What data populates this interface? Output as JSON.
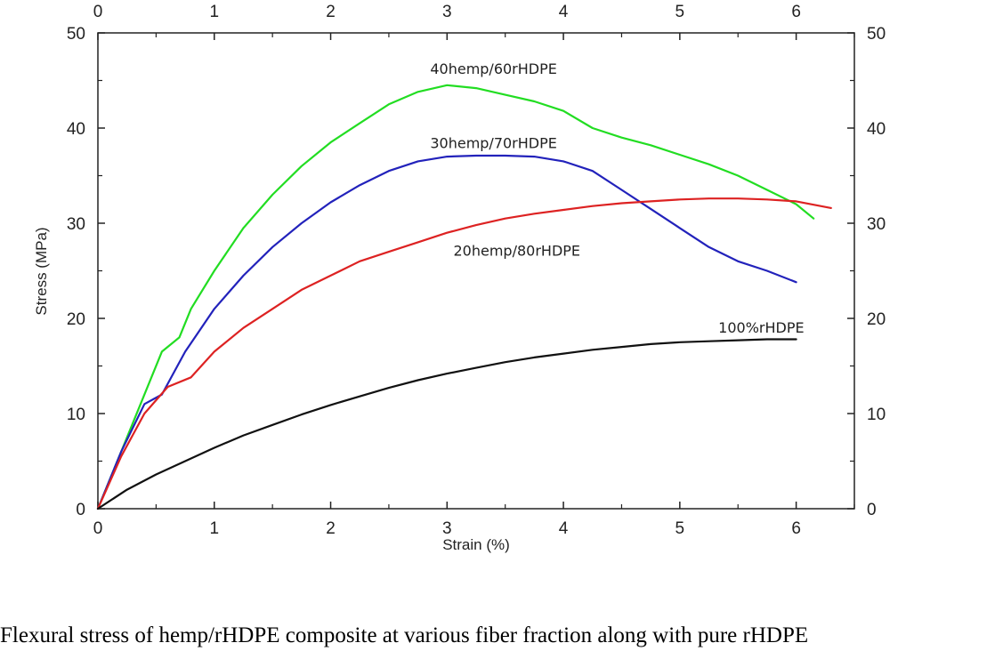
{
  "caption": "Flexural stress of hemp/rHDPE composite at various fiber fraction along with pure rHDPE",
  "chart_data": {
    "type": "line",
    "title": "",
    "xlabel": "Strain (%)",
    "ylabel": "Stress (MPa)",
    "xlim": [
      0,
      6.5
    ],
    "ylim": [
      0,
      50
    ],
    "x_ticks": [
      "0",
      "1",
      "2",
      "3",
      "4",
      "5",
      "6"
    ],
    "y_ticks": [
      "0",
      "10",
      "20",
      "30",
      "40",
      "50"
    ],
    "grid": false,
    "mirrored_axes": true,
    "series": [
      {
        "name": "40hemp/60rHDPE",
        "color": "#22dd22",
        "points": [
          [
            0,
            0
          ],
          [
            0.2,
            6
          ],
          [
            0.4,
            12
          ],
          [
            0.55,
            16.5
          ],
          [
            0.7,
            18
          ],
          [
            0.8,
            21
          ],
          [
            1.0,
            25
          ],
          [
            1.25,
            29.5
          ],
          [
            1.5,
            33
          ],
          [
            1.75,
            36
          ],
          [
            2.0,
            38.5
          ],
          [
            2.25,
            40.5
          ],
          [
            2.5,
            42.5
          ],
          [
            2.75,
            43.8
          ],
          [
            3.0,
            44.5
          ],
          [
            3.25,
            44.2
          ],
          [
            3.5,
            43.5
          ],
          [
            3.75,
            42.8
          ],
          [
            4.0,
            41.8
          ],
          [
            4.25,
            40
          ],
          [
            4.5,
            39
          ],
          [
            4.75,
            38.2
          ],
          [
            5.0,
            37.2
          ],
          [
            5.25,
            36.2
          ],
          [
            5.5,
            35
          ],
          [
            5.75,
            33.5
          ],
          [
            6.0,
            32
          ],
          [
            6.15,
            30.5
          ]
        ]
      },
      {
        "name": "30hemp/70rHDPE",
        "color": "#2222bb",
        "points": [
          [
            0,
            0
          ],
          [
            0.2,
            6
          ],
          [
            0.4,
            11
          ],
          [
            0.55,
            12
          ],
          [
            0.75,
            16.5
          ],
          [
            1.0,
            21
          ],
          [
            1.25,
            24.5
          ],
          [
            1.5,
            27.5
          ],
          [
            1.75,
            30
          ],
          [
            2.0,
            32.2
          ],
          [
            2.25,
            34
          ],
          [
            2.5,
            35.5
          ],
          [
            2.75,
            36.5
          ],
          [
            3.0,
            37
          ],
          [
            3.25,
            37.1
          ],
          [
            3.5,
            37.1
          ],
          [
            3.75,
            37
          ],
          [
            4.0,
            36.5
          ],
          [
            4.25,
            35.5
          ],
          [
            4.5,
            33.5
          ],
          [
            4.75,
            31.5
          ],
          [
            5.0,
            29.5
          ],
          [
            5.25,
            27.5
          ],
          [
            5.5,
            26
          ],
          [
            5.75,
            25
          ],
          [
            6.0,
            23.8
          ]
        ]
      },
      {
        "name": "20hemp/80rHDPE",
        "color": "#dd2222",
        "points": [
          [
            0,
            0
          ],
          [
            0.2,
            5.5
          ],
          [
            0.4,
            10
          ],
          [
            0.6,
            12.8
          ],
          [
            0.8,
            13.8
          ],
          [
            1.0,
            16.5
          ],
          [
            1.25,
            19
          ],
          [
            1.5,
            21
          ],
          [
            1.75,
            23
          ],
          [
            2.0,
            24.5
          ],
          [
            2.25,
            26
          ],
          [
            2.5,
            27
          ],
          [
            2.75,
            28
          ],
          [
            3.0,
            29
          ],
          [
            3.25,
            29.8
          ],
          [
            3.5,
            30.5
          ],
          [
            3.75,
            31
          ],
          [
            4.0,
            31.4
          ],
          [
            4.25,
            31.8
          ],
          [
            4.5,
            32.1
          ],
          [
            4.75,
            32.3
          ],
          [
            5.0,
            32.5
          ],
          [
            5.25,
            32.6
          ],
          [
            5.5,
            32.6
          ],
          [
            5.75,
            32.5
          ],
          [
            6.0,
            32.3
          ],
          [
            6.3,
            31.6
          ]
        ]
      },
      {
        "name": "100%rHDPE",
        "color": "#111111",
        "points": [
          [
            0,
            0
          ],
          [
            0.25,
            2
          ],
          [
            0.5,
            3.6
          ],
          [
            0.75,
            5
          ],
          [
            1.0,
            6.4
          ],
          [
            1.25,
            7.7
          ],
          [
            1.5,
            8.8
          ],
          [
            1.75,
            9.9
          ],
          [
            2.0,
            10.9
          ],
          [
            2.25,
            11.8
          ],
          [
            2.5,
            12.7
          ],
          [
            2.75,
            13.5
          ],
          [
            3.0,
            14.2
          ],
          [
            3.25,
            14.8
          ],
          [
            3.5,
            15.4
          ],
          [
            3.75,
            15.9
          ],
          [
            4.0,
            16.3
          ],
          [
            4.25,
            16.7
          ],
          [
            4.5,
            17
          ],
          [
            4.75,
            17.3
          ],
          [
            5.0,
            17.5
          ],
          [
            5.25,
            17.6
          ],
          [
            5.5,
            17.7
          ],
          [
            5.75,
            17.8
          ],
          [
            6.0,
            17.8
          ]
        ]
      }
    ],
    "annotations": [
      {
        "text": "40hemp/60rHDPE",
        "x": 3.4,
        "y": 45.7
      },
      {
        "text": "30hemp/70rHDPE",
        "x": 3.4,
        "y": 37.9
      },
      {
        "text": "20hemp/80rHDPE",
        "x": 3.6,
        "y": 26.6
      },
      {
        "text": "100%rHDPE",
        "x": 5.7,
        "y": 18.5
      }
    ]
  }
}
